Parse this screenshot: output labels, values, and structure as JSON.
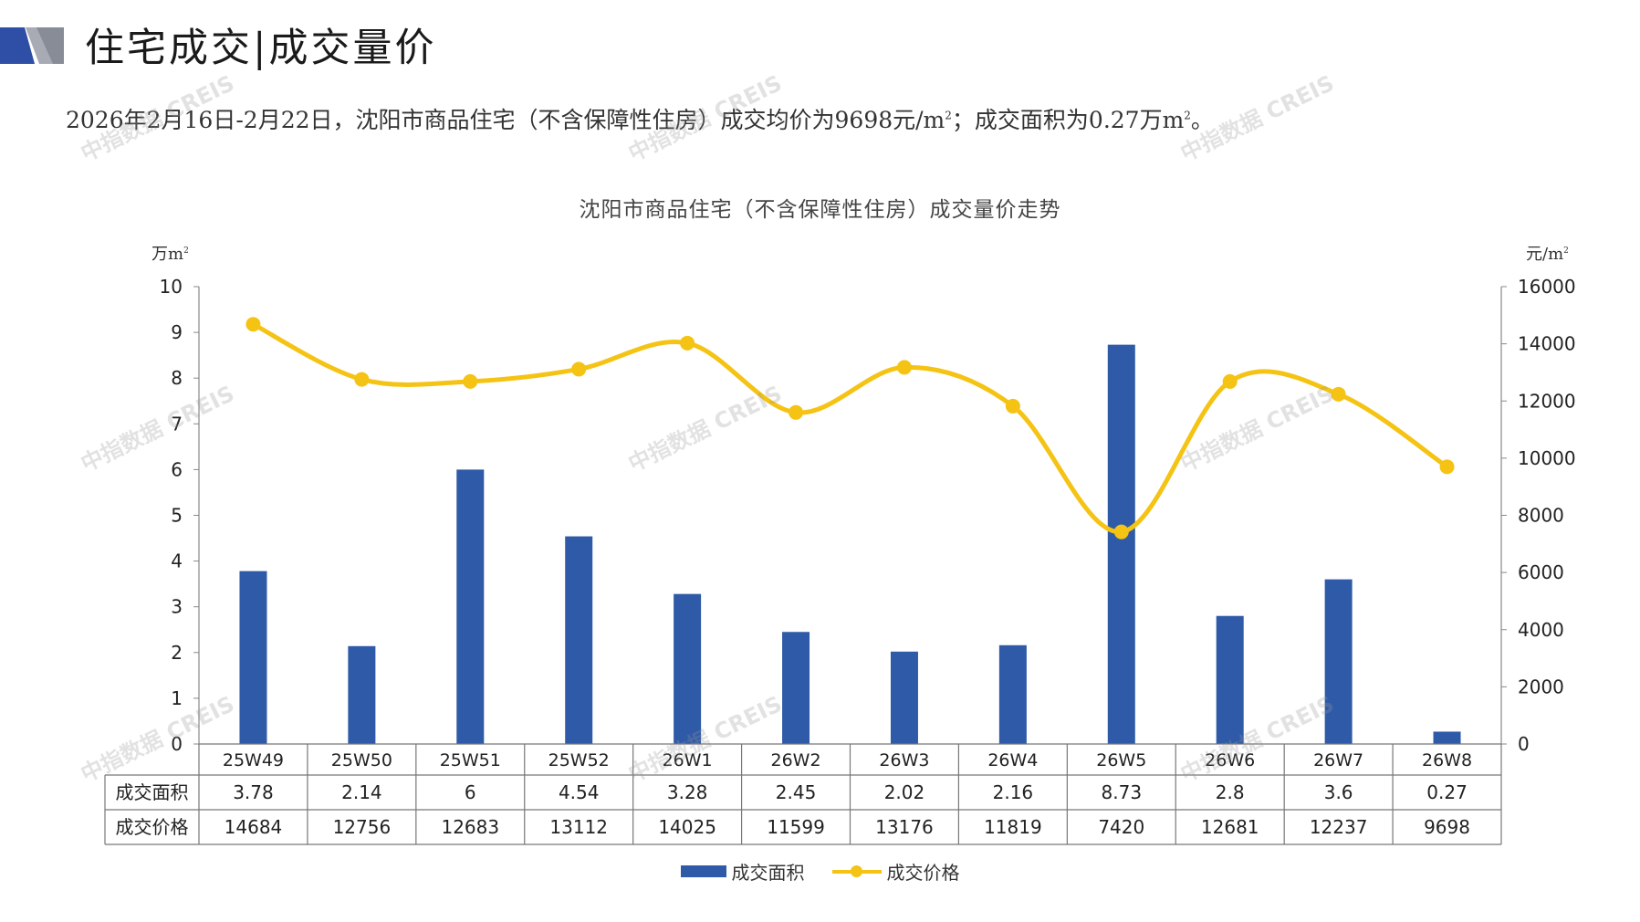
{
  "header": {
    "title": "住宅成交|成交量价",
    "summary_prefix": "2026年2月16日-2月22日，沈阳市商品住宅（不含保障性住房）成交均价为9698元/m",
    "summary_mid": "；成交面积为0.27万m",
    "summary_end": "。",
    "summary_sup": "2"
  },
  "watermark": "中指数据 CREIS",
  "colors": {
    "bar": "#2F5AA8",
    "line": "#F5C314",
    "logo_dark": "#2F4FA6",
    "logo_grey": "#A8ABB3"
  },
  "chart_data": {
    "type": "bar",
    "title": "沈阳市商品住宅（不含保障性住房）成交量价走势",
    "categories": [
      "25W49",
      "25W50",
      "25W51",
      "25W52",
      "26W1",
      "26W2",
      "26W3",
      "26W4",
      "26W5",
      "26W6",
      "26W7",
      "26W8"
    ],
    "series": [
      {
        "name": "成交面积",
        "type": "bar",
        "axis": "left",
        "values": [
          3.78,
          2.14,
          6,
          4.54,
          3.28,
          2.45,
          2.02,
          2.16,
          8.73,
          2.8,
          3.6,
          0.27
        ],
        "display": [
          "3.78",
          "2.14",
          "6",
          "4.54",
          "3.28",
          "2.45",
          "2.02",
          "2.16",
          "8.73",
          "2.8",
          "3.6",
          "0.27"
        ]
      },
      {
        "name": "成交价格",
        "type": "line",
        "axis": "right",
        "values": [
          14684,
          12756,
          12683,
          13112,
          14025,
          11599,
          13176,
          11819,
          7420,
          12681,
          12237,
          9698
        ],
        "display": [
          "14684",
          "12756",
          "12683",
          "13112",
          "14025",
          "11599",
          "13176",
          "11819",
          "7420",
          "12681",
          "12237",
          "9698"
        ]
      }
    ],
    "y_left": {
      "unit": "万m",
      "min": 0,
      "max": 10,
      "ticks": [
        "0",
        "1",
        "2",
        "3",
        "4",
        "5",
        "6",
        "7",
        "8",
        "9",
        "10"
      ]
    },
    "y_right": {
      "unit": "元/m",
      "min": 0,
      "max": 16000,
      "ticks": [
        "0",
        "2000",
        "4000",
        "6000",
        "8000",
        "10000",
        "12000",
        "14000",
        "16000"
      ]
    },
    "unit_sup": "2",
    "legend": [
      "成交面积",
      "成交价格"
    ],
    "legend_position": "bottom",
    "data_table": true,
    "grid": false
  }
}
